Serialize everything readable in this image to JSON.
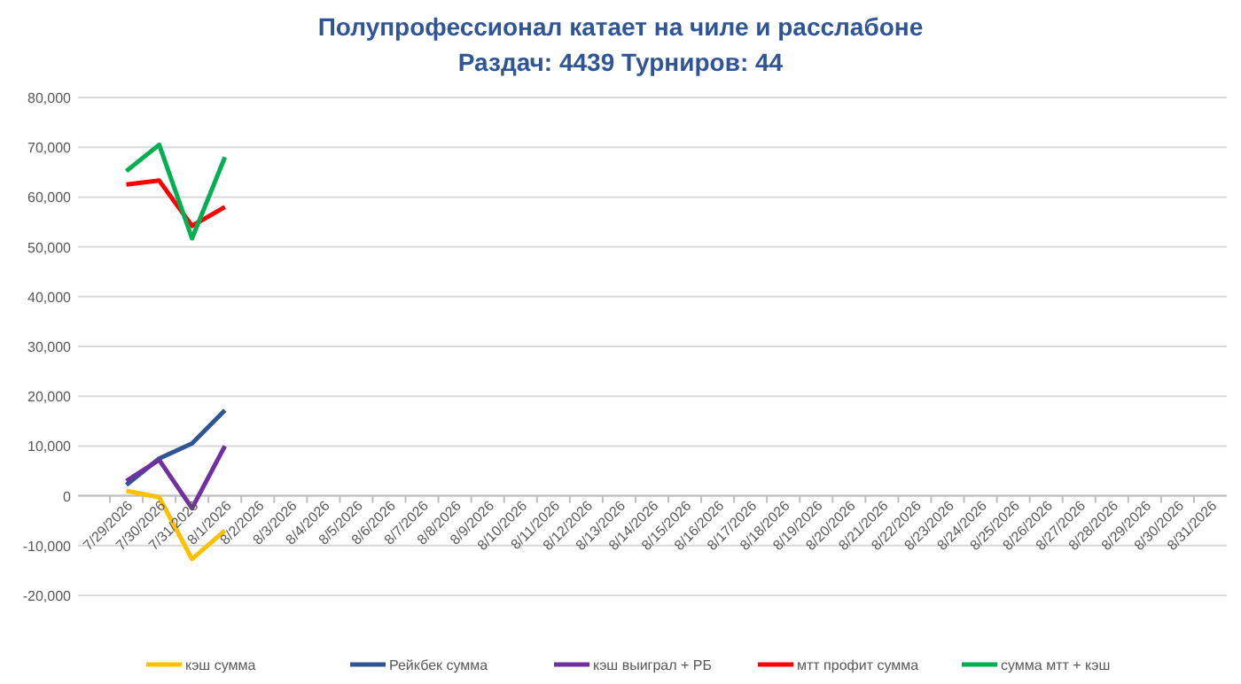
{
  "chart_data": {
    "type": "line",
    "title": "Полупрофессионал катает на чиле и расслабоне",
    "subtitle": "Раздач: 4439 Турниров: 44",
    "categories": [
      "7/29/2026",
      "7/30/2026",
      "7/31/2026",
      "8/1/2026",
      "8/2/2026",
      "8/3/2026",
      "8/4/2026",
      "8/5/2026",
      "8/6/2026",
      "8/7/2026",
      "8/8/2026",
      "8/9/2026",
      "8/10/2026",
      "8/11/2026",
      "8/12/2026",
      "8/13/2026",
      "8/14/2026",
      "8/15/2026",
      "8/16/2026",
      "8/17/2026",
      "8/18/2026",
      "8/19/2026",
      "8/20/2026",
      "8/21/2026",
      "8/22/2026",
      "8/23/2026",
      "8/24/2026",
      "8/25/2026",
      "8/26/2026",
      "8/27/2026",
      "8/28/2026",
      "8/29/2026",
      "8/30/2026",
      "8/31/2026"
    ],
    "series": [
      {
        "name": "кэш сумма",
        "color": "#ffc000",
        "values": [
          1000,
          -300,
          -12700,
          -7000,
          null,
          null,
          null,
          null,
          null,
          null,
          null,
          null,
          null,
          null,
          null,
          null,
          null,
          null,
          null,
          null,
          null,
          null,
          null,
          null,
          null,
          null,
          null,
          null,
          null,
          null,
          null,
          null,
          null,
          null
        ]
      },
      {
        "name": "Рейкбек сумма",
        "color": "#2f5597",
        "values": [
          2200,
          7500,
          10500,
          17200,
          null,
          null,
          null,
          null,
          null,
          null,
          null,
          null,
          null,
          null,
          null,
          null,
          null,
          null,
          null,
          null,
          null,
          null,
          null,
          null,
          null,
          null,
          null,
          null,
          null,
          null,
          null,
          null,
          null,
          null
        ]
      },
      {
        "name": "кэш выиграл + РБ",
        "color": "#7030a0",
        "values": [
          3000,
          7200,
          -2500,
          10000,
          null,
          null,
          null,
          null,
          null,
          null,
          null,
          null,
          null,
          null,
          null,
          null,
          null,
          null,
          null,
          null,
          null,
          null,
          null,
          null,
          null,
          null,
          null,
          null,
          null,
          null,
          null,
          null,
          null,
          null
        ]
      },
      {
        "name": "мтт профит сумма",
        "color": "#ff0000",
        "values": [
          62500,
          63300,
          54200,
          58000,
          null,
          null,
          null,
          null,
          null,
          null,
          null,
          null,
          null,
          null,
          null,
          null,
          null,
          null,
          null,
          null,
          null,
          null,
          null,
          null,
          null,
          null,
          null,
          null,
          null,
          null,
          null,
          null,
          null,
          null
        ]
      },
      {
        "name": "сумма мтт + кэш",
        "color": "#00b050",
        "values": [
          65200,
          70500,
          51700,
          68000,
          null,
          null,
          null,
          null,
          null,
          null,
          null,
          null,
          null,
          null,
          null,
          null,
          null,
          null,
          null,
          null,
          null,
          null,
          null,
          null,
          null,
          null,
          null,
          null,
          null,
          null,
          null,
          null,
          null,
          null
        ]
      }
    ],
    "ylim": [
      -20000,
      80000
    ],
    "yticks": [
      {
        "value": -20000,
        "label": "-20,000"
      },
      {
        "value": -10000,
        "label": "-10,000"
      },
      0,
      {
        "value": 10000,
        "label": "10,000"
      },
      {
        "value": 20000,
        "label": "20,000"
      },
      {
        "value": 30000,
        "label": "30,000"
      },
      {
        "value": 40000,
        "label": "40,000"
      },
      {
        "value": 50000,
        "label": "50,000"
      },
      {
        "value": 60000,
        "label": "60,000"
      },
      {
        "value": 70000,
        "label": "70,000"
      },
      {
        "value": 80000,
        "label": "80,000"
      }
    ],
    "grid": "y",
    "legend": "bottom",
    "marker": "none",
    "line_style": "solid"
  }
}
